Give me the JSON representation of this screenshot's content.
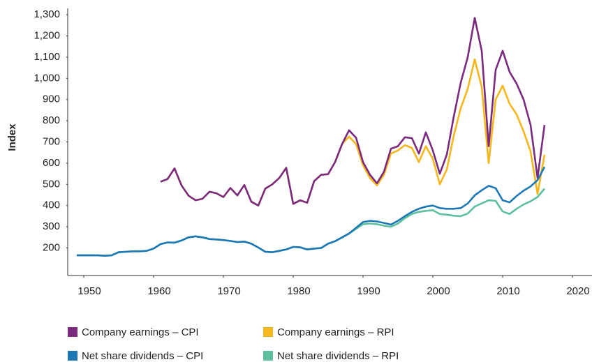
{
  "chart_data": {
    "type": "line",
    "y_label": "Index",
    "x": [
      1949,
      1950,
      1951,
      1952,
      1953,
      1954,
      1955,
      1956,
      1957,
      1958,
      1959,
      1960,
      1961,
      1962,
      1963,
      1964,
      1965,
      1966,
      1967,
      1968,
      1969,
      1970,
      1971,
      1972,
      1973,
      1974,
      1975,
      1976,
      1977,
      1978,
      1979,
      1980,
      1981,
      1982,
      1983,
      1984,
      1985,
      1986,
      1987,
      1988,
      1989,
      1990,
      1991,
      1992,
      1993,
      1994,
      1995,
      1996,
      1997,
      1998,
      1999,
      2000,
      2001,
      2002,
      2003,
      2004,
      2005,
      2006,
      2007,
      2008,
      2009,
      2010,
      2011,
      2012,
      2013,
      2014,
      2015,
      2016
    ],
    "series": [
      {
        "name": "Company earnings – RPI",
        "color": "#f5b71d",
        "values": [
          null,
          null,
          null,
          null,
          null,
          null,
          null,
          null,
          null,
          null,
          null,
          null,
          512,
          525,
          575,
          495,
          447,
          425,
          432,
          465,
          458,
          440,
          483,
          448,
          497,
          418,
          400,
          480,
          500,
          530,
          578,
          408,
          425,
          413,
          515,
          545,
          548,
          605,
          690,
          725,
          690,
          590,
          530,
          495,
          545,
          645,
          660,
          685,
          672,
          605,
          680,
          620,
          500,
          570,
          730,
          860,
          950,
          1090,
          960,
          600,
          900,
          965,
          880,
          830,
          750,
          655,
          455,
          640
        ]
      },
      {
        "name": "Company earnings – CPI",
        "color": "#7a2a7f",
        "values": [
          null,
          null,
          null,
          null,
          null,
          null,
          null,
          null,
          null,
          null,
          null,
          null,
          512,
          525,
          575,
          495,
          447,
          425,
          432,
          465,
          458,
          440,
          483,
          448,
          497,
          418,
          400,
          480,
          500,
          530,
          578,
          408,
          425,
          413,
          515,
          545,
          548,
          605,
          690,
          755,
          720,
          605,
          545,
          505,
          560,
          668,
          680,
          722,
          718,
          645,
          745,
          660,
          550,
          640,
          820,
          980,
          1100,
          1285,
          1130,
          680,
          1040,
          1130,
          1030,
          975,
          900,
          780,
          530,
          780
        ]
      },
      {
        "name": "Net share dividends – RPI",
        "color": "#5cbf9d",
        "values": [
          165,
          165,
          165,
          165,
          163,
          165,
          180,
          182,
          184,
          184,
          186,
          197,
          218,
          226,
          225,
          235,
          250,
          255,
          250,
          242,
          240,
          237,
          233,
          228,
          230,
          220,
          202,
          182,
          180,
          186,
          193,
          205,
          203,
          193,
          197,
          200,
          220,
          232,
          250,
          268,
          290,
          312,
          315,
          312,
          305,
          300,
          315,
          340,
          360,
          370,
          375,
          378,
          360,
          357,
          352,
          350,
          362,
          395,
          410,
          425,
          422,
          372,
          360,
          385,
          405,
          420,
          440,
          480
        ]
      },
      {
        "name": "Net share dividends – CPI",
        "color": "#1c77b5",
        "values": [
          165,
          165,
          165,
          165,
          163,
          165,
          180,
          182,
          184,
          184,
          186,
          197,
          218,
          226,
          225,
          235,
          250,
          255,
          250,
          242,
          240,
          237,
          233,
          228,
          230,
          220,
          202,
          182,
          180,
          186,
          193,
          205,
          203,
          193,
          197,
          200,
          220,
          232,
          250,
          268,
          295,
          322,
          328,
          325,
          318,
          310,
          328,
          350,
          370,
          385,
          395,
          400,
          388,
          385,
          385,
          388,
          410,
          448,
          472,
          493,
          482,
          425,
          415,
          445,
          470,
          490,
          520,
          582
        ]
      }
    ],
    "legend_order": [
      1,
      0,
      3,
      2
    ],
    "xlim": [
      1948,
      2022
    ],
    "xticks": [
      1950,
      1960,
      1970,
      1980,
      1990,
      2000,
      2010,
      2020
    ],
    "ylim": [
      70,
      1330
    ],
    "yticks": [
      200,
      300,
      400,
      500,
      600,
      700,
      800,
      900,
      {
        "value": 1000,
        "label": "1,000"
      },
      {
        "value": 1100,
        "label": "1,100"
      },
      {
        "value": 1200,
        "label": "1,200"
      },
      {
        "value": 1300,
        "label": "1,300"
      }
    ],
    "legend": "bottom",
    "grid": false
  }
}
